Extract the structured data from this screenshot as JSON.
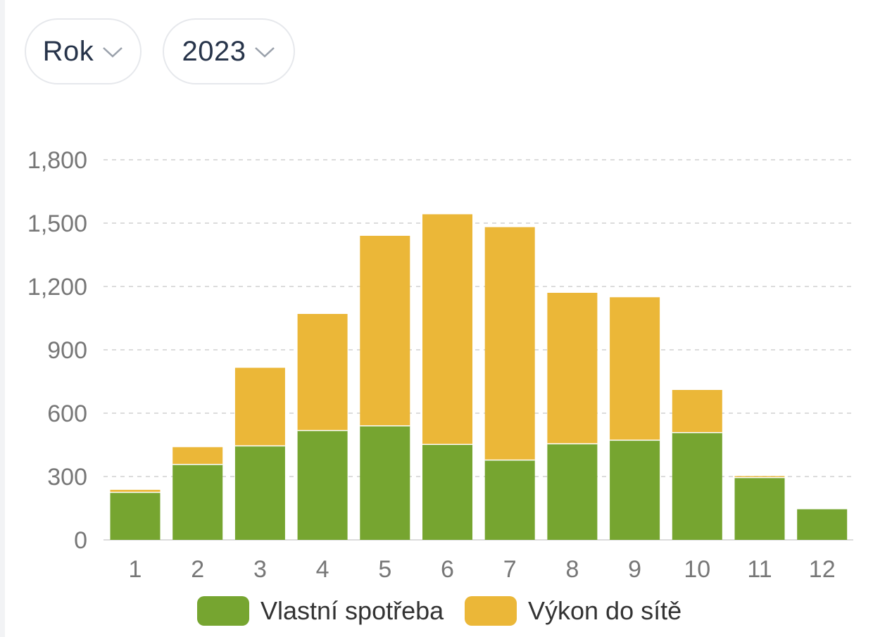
{
  "filters": {
    "period": {
      "label": "Rok"
    },
    "year": {
      "label": "2023"
    }
  },
  "colors": {
    "self_consumption": "#76a530",
    "grid_export": "#ebb738",
    "grid_line": "#dcdcdc",
    "tick_text": "#777777"
  },
  "chart_data": {
    "type": "bar",
    "stacked": true,
    "categories": [
      "1",
      "2",
      "3",
      "4",
      "5",
      "6",
      "7",
      "8",
      "9",
      "10",
      "11",
      "12"
    ],
    "series": [
      {
        "name": "Vlastní spotřeba",
        "color": "#76a530",
        "values": [
          225,
          357,
          445,
          518,
          540,
          452,
          378,
          455,
          472,
          508,
          295,
          145
        ]
      },
      {
        "name": "Výkon do sítě",
        "color": "#ebb738",
        "values": [
          12,
          82,
          370,
          552,
          900,
          1090,
          1103,
          715,
          677,
          202,
          7,
          0
        ]
      }
    ],
    "ylim": [
      0,
      1800
    ],
    "yticks": [
      "0",
      "300",
      "600",
      "900",
      "1,200",
      "1,500",
      "1,800"
    ],
    "ytick_values": [
      0,
      300,
      600,
      900,
      1200,
      1500,
      1800
    ],
    "grid": true,
    "legend": "bottom"
  }
}
